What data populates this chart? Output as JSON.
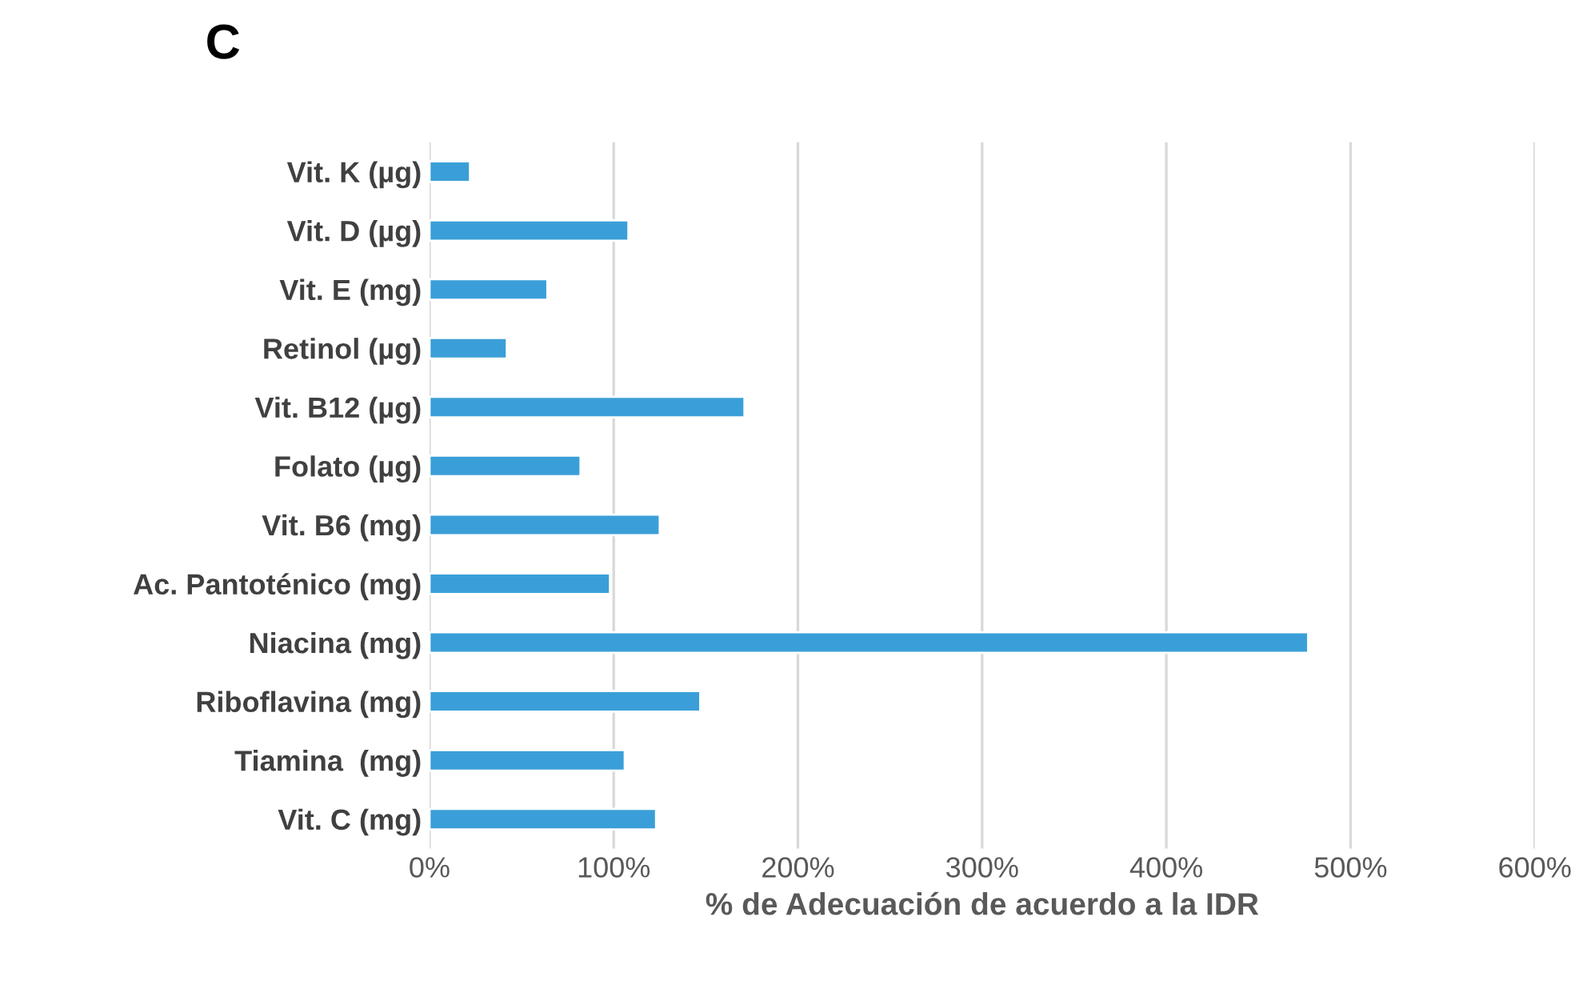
{
  "chart_data": {
    "type": "bar",
    "orientation": "horizontal",
    "title": "C",
    "xlabel": "% de Adecuación de acuerdo a la IDR",
    "categories": [
      "Vit. K (µg)",
      "Vit. D (µg)",
      "Vit. E (mg)",
      "Retinol (µg)",
      "Vit. B12 (µg)",
      "Folato (µg)",
      "Vit. B6 (mg)",
      "Ac. Pantoténico (mg)",
      "Niacina (mg)",
      "Riboflavina (mg)",
      "Tiamina  (mg)",
      "Vit. C (mg)"
    ],
    "values": [
      22,
      108,
      64,
      42,
      171,
      82,
      125,
      98,
      477,
      147,
      106,
      123
    ],
    "color": "#3a9fd8",
    "xlim": [
      0,
      600
    ],
    "xticks": [
      {
        "value": 0,
        "label": "0%"
      },
      {
        "value": 100,
        "label": "100%"
      },
      {
        "value": 200,
        "label": "200%"
      },
      {
        "value": 300,
        "label": "300%"
      },
      {
        "value": 400,
        "label": "400%"
      },
      {
        "value": 500,
        "label": "500%"
      },
      {
        "value": 600,
        "label": "600%"
      }
    ],
    "grid": "x",
    "legend": false
  }
}
